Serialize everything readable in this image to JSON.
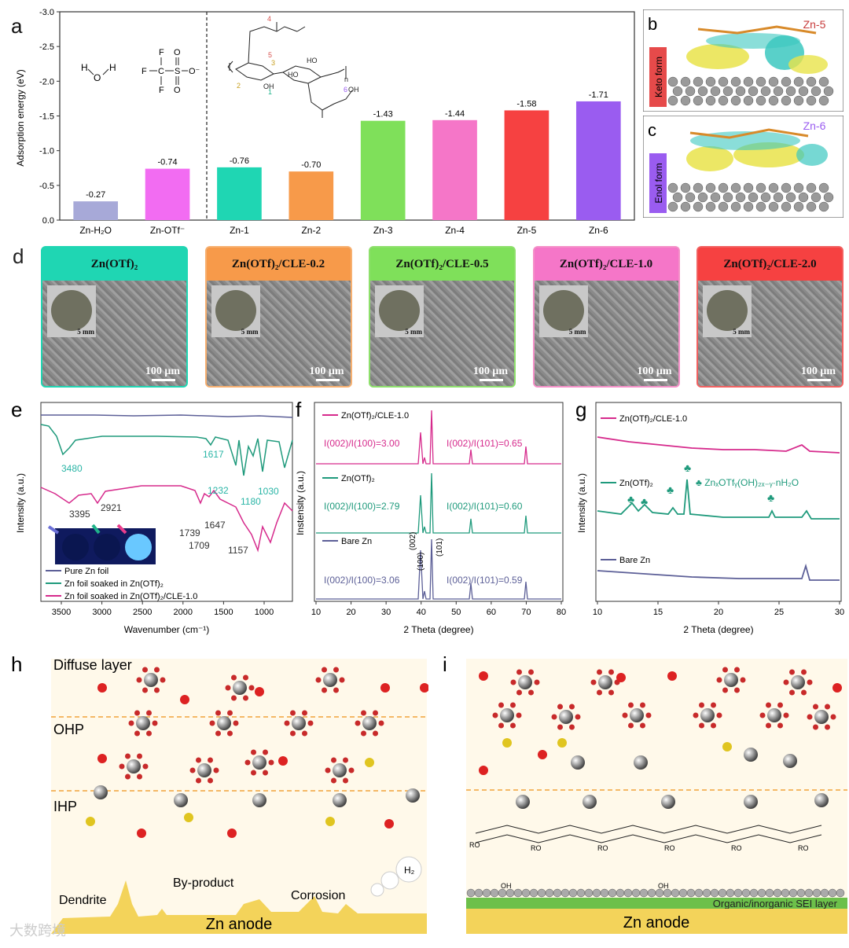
{
  "panel_letters": {
    "a": "a",
    "b": "b",
    "c": "c",
    "d": "d",
    "e": "e",
    "f": "f",
    "g": "g",
    "h": "h",
    "i": "i"
  },
  "colors": {
    "h2o": "#a7a9d8",
    "otf": "#f26cf2",
    "zn1": "#1fd6b3",
    "zn2": "#f79a4a",
    "zn3": "#7fe05a",
    "zn4": "#f576c8",
    "zn5": "#f64141",
    "zn6": "#9a5cf0",
    "pure": "#5c5f97",
    "otfl": "#1f9a7c",
    "cle": "#d62a8c"
  },
  "panel_a": {
    "chart_data": {
      "type": "bar",
      "ylabel": "Adsorption energy (eV)",
      "ylim": [
        0,
        -3.0
      ],
      "yticks": [
        "0.0",
        "-0.5",
        "-1.0",
        "-1.5",
        "-2.0",
        "-2.5",
        "-3.0"
      ],
      "categories": [
        "Zn-H₂O",
        "Zn-OTf⁻",
        "Zn-1",
        "Zn-2",
        "Zn-3",
        "Zn-4",
        "Zn-5",
        "Zn-6"
      ],
      "values": [
        -0.27,
        -0.74,
        -0.76,
        -0.7,
        -1.43,
        -1.44,
        -1.58,
        -1.71
      ],
      "value_labels": [
        "-0.27",
        "-0.74",
        "-0.76",
        "-0.70",
        "-1.43",
        "-1.44",
        "-1.58",
        "-1.71"
      ]
    },
    "mol_h2o": {
      "h1": "H",
      "o": "O",
      "h2": "H"
    },
    "mol_otf": {
      "f1": "F",
      "f2": "F",
      "f3": "F",
      "c": "C",
      "s": "S",
      "o1": "O",
      "o2": "O",
      "o3": "O⁻"
    },
    "mol_cle": {
      "n4": "4",
      "n5": "5",
      "n3": "3",
      "n2": "2",
      "n1": "1",
      "n6": "6",
      "oh": "OH",
      "ho1": "HO",
      "ho2": "HO",
      "oh2": "OH",
      "n": "n"
    }
  },
  "panel_b": {
    "label": "Zn-5",
    "side": "Keto form"
  },
  "panel_c": {
    "label": "Zn-6",
    "side": "Enol form"
  },
  "panel_d": {
    "cards": [
      {
        "title": "Zn(OTf)₂",
        "scale_big": "100 μm",
        "scale_small": "5 mm"
      },
      {
        "title": "Zn(OTf)₂/CLE-0.2",
        "scale_big": "100 μm",
        "scale_small": "5 mm"
      },
      {
        "title": "Zn(OTf)₂/CLE-0.5",
        "scale_big": "100 μm",
        "scale_small": "5 mm"
      },
      {
        "title": "Zn(OTf)₂/CLE-1.0",
        "scale_big": "100 μm",
        "scale_small": "5 mm"
      },
      {
        "title": "Zn(OTf)₂/CLE-2.0",
        "scale_big": "100 μm",
        "scale_small": "5 mm"
      }
    ]
  },
  "panel_e": {
    "chart_data": {
      "type": "line",
      "xlabel": "Wavenumber (cm⁻¹)",
      "ylabel": "Intensity (a.u.)",
      "xticks": [
        "3500",
        "3000",
        "2500",
        "2000",
        "1500",
        "1000"
      ],
      "legend": [
        "Pure Zn foil",
        "Zn foil soaked in Zn(OTf)₂",
        "Zn foil soaked in Zn(OTf)₂/CLE-1.0"
      ],
      "annotations": [
        "3480",
        "1617",
        "1232",
        "1030",
        "1180",
        "3395",
        "2921",
        "1739",
        "1647",
        "1709",
        "1157"
      ]
    }
  },
  "panel_f": {
    "chart_data": {
      "type": "line",
      "xlabel": "2 Theta (degree)",
      "ylabel": "Instensity (a.u.)",
      "xticks": [
        "10",
        "20",
        "30",
        "40",
        "50",
        "60",
        "70",
        "80"
      ],
      "series_names": [
        "Zn(OTf)₂/CLE-1.0",
        "Zn(OTf)₂",
        "Bare Zn"
      ],
      "ratios": [
        {
          "a": "I(002)/I(100)=3.00",
          "b": "I(002)/I(101)=0.65"
        },
        {
          "a": "I(002)/I(100)=2.79",
          "b": "I(002)/I(101)=0.60"
        },
        {
          "a": "I(002)/I(100)=3.06",
          "b": "I(002)/I(101)=0.59"
        }
      ],
      "peaks": [
        "(002)",
        "(100)",
        "(101)"
      ]
    }
  },
  "panel_g": {
    "chart_data": {
      "type": "line",
      "xlabel": "2 Theta (degree)",
      "ylabel": "Intensity (a.u.)",
      "xticks": [
        "10",
        "15",
        "20",
        "25",
        "30"
      ],
      "series_names": [
        "Zn(OTf)₂/CLE-1.0",
        "Zn(OTf)₂",
        "Bare Zn"
      ],
      "annotation": "ZnₓOTfᵧ(OH)₂ₓ₋ᵧ·nH₂O"
    }
  },
  "panel_h": {
    "diffuse": "Diffuse layer",
    "ohp": "OHP",
    "ihp": "IHP",
    "dendrite": "Dendrite",
    "byproduct": "By-product",
    "corrosion": "Corrosion",
    "h2": "H₂",
    "anode": "Zn anode"
  },
  "panel_i": {
    "sei": "Organic/inorganic SEI layer",
    "anode": "Zn anode",
    "ro": "RO",
    "oh": "OH"
  },
  "watermark": "大数跨境"
}
